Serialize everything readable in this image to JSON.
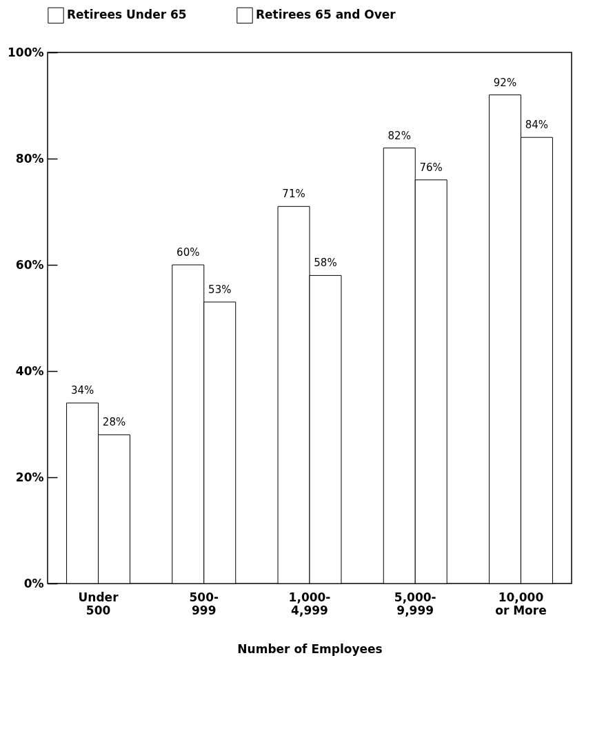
{
  "chart_data": {
    "type": "bar",
    "xlabel": "Number of Employees",
    "categories": [
      "Under 500",
      "500-999",
      "1,000-4,999",
      "5,000-9,999",
      "10,000 or More"
    ],
    "series": [
      {
        "name": "Retirees Under 65",
        "color": "#ffffff",
        "values": [
          34,
          60,
          71,
          82,
          92
        ],
        "value_labels": [
          "34%",
          "60%",
          "71%",
          "82%",
          "92%"
        ]
      },
      {
        "name": "Retirees 65 and Over",
        "color": "#ffffff",
        "values": [
          28,
          53,
          58,
          76,
          84
        ],
        "value_labels": [
          "28%",
          "53%",
          "58%",
          "76%",
          "84%"
        ]
      }
    ],
    "ylim": [
      0,
      100
    ],
    "yticks": [
      {
        "value": 0,
        "label": "0%"
      },
      {
        "value": 20,
        "label": "20%"
      },
      {
        "value": 40,
        "label": "40%"
      },
      {
        "value": 60,
        "label": "60%"
      },
      {
        "value": 80,
        "label": "80%"
      },
      {
        "value": 100,
        "label": "100%"
      }
    ],
    "legend": "top left"
  }
}
